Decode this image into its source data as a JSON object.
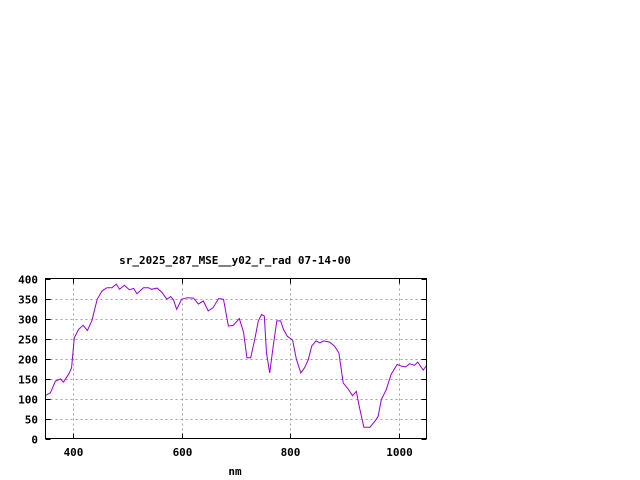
{
  "chart_data": {
    "type": "line",
    "title": "sr_2025_287_MSE__y02_r_rad 07-14-00",
    "xlabel": "nm",
    "ylabel": "",
    "xlim": [
      350,
      1050
    ],
    "ylim": [
      0,
      400
    ],
    "xticks": [
      400,
      600,
      800,
      1000
    ],
    "yticks": [
      0,
      50,
      100,
      150,
      200,
      250,
      300,
      350,
      400
    ],
    "grid": true,
    "line_color": "#9400d3",
    "series": [
      {
        "x": [
          350,
          359,
          368,
          377,
          383,
          393,
          398,
          403,
          411,
          419,
          427,
          435,
          445,
          454,
          463,
          472,
          480,
          486,
          495,
          504,
          512,
          518,
          530,
          539,
          545,
          555,
          564,
          573,
          580,
          585,
          591,
          600,
          610,
          622,
          631,
          640,
          649,
          658,
          668,
          677,
          686,
          695,
          706,
          714,
          720,
          727,
          735,
          741,
          747,
          752,
          756,
          762,
          768,
          775,
          782,
          787,
          794,
          804,
          811,
          819,
          826,
          833,
          839,
          847,
          854,
          861,
          872,
          881,
          889,
          897,
          906,
          914,
          921,
          927,
          935,
          946,
          955,
          961,
          967,
          976,
          985,
          996,
          1004,
          1012,
          1019,
          1028,
          1034,
          1039,
          1044,
          1049
        ],
        "y": [
          108,
          114,
          143,
          149,
          141,
          162,
          177,
          252,
          273,
          283,
          270,
          294,
          348,
          369,
          377,
          377,
          386,
          373,
          383,
          372,
          375,
          362,
          377,
          377,
          373,
          376,
          365,
          348,
          355,
          347,
          323,
          348,
          352,
          351,
          336,
          344,
          319,
          327,
          350,
          348,
          281,
          283,
          300,
          265,
          202,
          202,
          252,
          294,
          310,
          306,
          214,
          164,
          227,
          294,
          294,
          273,
          256,
          246,
          198,
          164,
          177,
          198,
          231,
          244,
          239,
          244,
          241,
          231,
          214,
          139,
          124,
          107,
          118,
          76,
          28,
          28,
          43,
          55,
          97,
          122,
          160,
          185,
          181,
          179,
          187,
          183,
          191,
          181,
          171,
          181
        ]
      }
    ]
  }
}
